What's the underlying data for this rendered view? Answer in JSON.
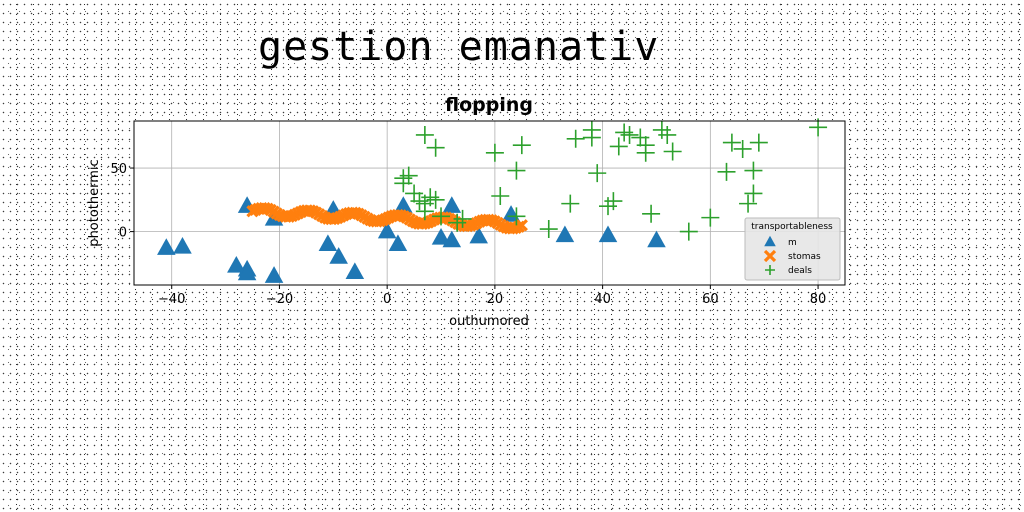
{
  "page": {
    "title": "gestion emanativ"
  },
  "chart_data": {
    "type": "scatter",
    "title": "flopping",
    "xlabel": "outhumored",
    "ylabel": "photothermic",
    "xlim": [
      -47,
      85
    ],
    "ylim": [
      -42,
      87
    ],
    "xticks": [
      -40,
      -20,
      0,
      20,
      40,
      60,
      80
    ],
    "yticks": [
      0,
      50
    ],
    "grid": true,
    "legend": {
      "title": "transportableness",
      "placement": "lower-right"
    },
    "series": [
      {
        "name": "m",
        "marker": "triangle",
        "color": "#1f77b4",
        "points": [
          [
            -41,
            -13
          ],
          [
            -38,
            -12
          ],
          [
            -26,
            20
          ],
          [
            -28,
            -27
          ],
          [
            -26,
            -30
          ],
          [
            -26,
            -33
          ],
          [
            -21,
            -35
          ],
          [
            -21,
            10
          ],
          [
            -11,
            -10
          ],
          [
            -10,
            17
          ],
          [
            -9,
            -20
          ],
          [
            -6,
            -32
          ],
          [
            0,
            0
          ],
          [
            2,
            -10
          ],
          [
            3,
            20
          ],
          [
            10,
            -5
          ],
          [
            12,
            -7
          ],
          [
            12,
            20
          ],
          [
            17,
            -4
          ],
          [
            23,
            13
          ],
          [
            33,
            -3
          ],
          [
            41,
            -3
          ],
          [
            50,
            -7
          ]
        ]
      },
      {
        "name": "stomas",
        "marker": "x",
        "color": "#ff7f0e",
        "line": {
          "x_start": -25,
          "x_end": 25,
          "y_start": 16,
          "y_end": 5,
          "count": 90,
          "jitter": 3
        }
      },
      {
        "name": "deals",
        "marker": "plus",
        "color": "#2ca02c",
        "points": [
          [
            3,
            42
          ],
          [
            4,
            44
          ],
          [
            3,
            38
          ],
          [
            5,
            30
          ],
          [
            6,
            24
          ],
          [
            7,
            22
          ],
          [
            8,
            27
          ],
          [
            9,
            25
          ],
          [
            7,
            16
          ],
          [
            10,
            12
          ],
          [
            13,
            7
          ],
          [
            14,
            10
          ],
          [
            7,
            76
          ],
          [
            9,
            66
          ],
          [
            20,
            62
          ],
          [
            21,
            28
          ],
          [
            24,
            48
          ],
          [
            24,
            12
          ],
          [
            25,
            68
          ],
          [
            30,
            2
          ],
          [
            34,
            22
          ],
          [
            35,
            73
          ],
          [
            38,
            80
          ],
          [
            38,
            74
          ],
          [
            39,
            46
          ],
          [
            41,
            20
          ],
          [
            42,
            24
          ],
          [
            43,
            67
          ],
          [
            44,
            78
          ],
          [
            45,
            76
          ],
          [
            47,
            74
          ],
          [
            48,
            62
          ],
          [
            48,
            68
          ],
          [
            49,
            14
          ],
          [
            51,
            80
          ],
          [
            52,
            76
          ],
          [
            53,
            63
          ],
          [
            56,
            0
          ],
          [
            60,
            11
          ],
          [
            63,
            47
          ],
          [
            64,
            70
          ],
          [
            66,
            65
          ],
          [
            67,
            22
          ],
          [
            68,
            48
          ],
          [
            68,
            30
          ],
          [
            69,
            70
          ],
          [
            80,
            82
          ]
        ]
      }
    ]
  }
}
